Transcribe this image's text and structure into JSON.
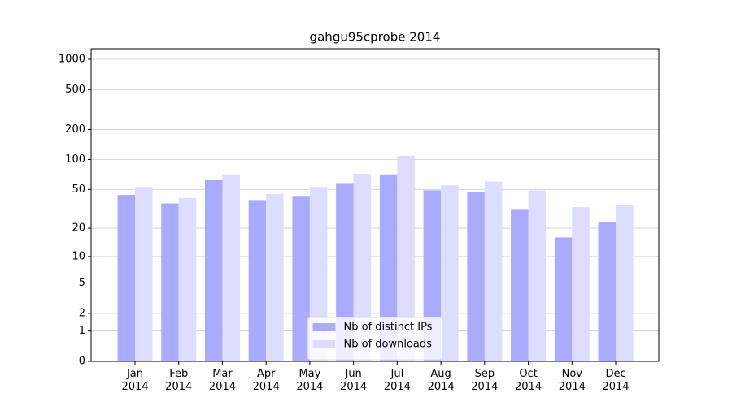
{
  "chart_data": {
    "type": "bar",
    "title": "gahgu95cprobe 2014",
    "categories": [
      "Jan\n2014",
      "Feb\n2014",
      "Mar\n2014",
      "Apr\n2014",
      "May\n2014",
      "Jun\n2014",
      "Jul\n2014",
      "Aug\n2014",
      "Sep\n2014",
      "Oct\n2014",
      "Nov\n2014",
      "Dec\n2014"
    ],
    "series": [
      {
        "name": "Nb of distinct IPs",
        "color": "#aaaaff",
        "values": [
          44,
          36,
          62,
          39,
          43,
          58,
          71,
          49,
          47,
          31,
          16,
          23
        ]
      },
      {
        "name": "Nb of downloads",
        "color": "#ddddff",
        "values": [
          53,
          41,
          71,
          45,
          53,
          72,
          109,
          55,
          60,
          49,
          33,
          35
        ]
      }
    ],
    "yscale": "log1p",
    "ylim": [
      0,
      1273
    ],
    "yticks": [
      0,
      1,
      2,
      5,
      10,
      20,
      50,
      100,
      200,
      500,
      1000
    ],
    "grid": true,
    "legend": "lower center"
  }
}
